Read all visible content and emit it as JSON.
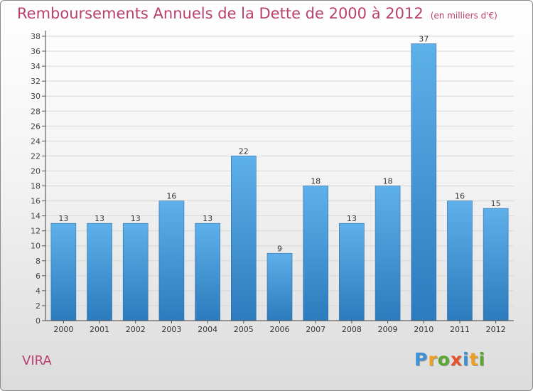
{
  "header": {
    "title": "Remboursements Annuels de la Dette de 2000 à 2012",
    "unit": "(en milliers d'€)"
  },
  "footer": {
    "commune": "VIRA",
    "logo_letters": [
      {
        "char": "P",
        "color": "#3d8fd6"
      },
      {
        "char": "r",
        "color": "#f0a020"
      },
      {
        "char": "o",
        "color": "#5aa832"
      },
      {
        "char": "x",
        "color": "#e8502a"
      },
      {
        "char": "i",
        "color": "#3d8fd6"
      },
      {
        "char": "t",
        "color": "#f0a020"
      },
      {
        "char": "i",
        "color": "#5aa832"
      }
    ]
  },
  "chart_data": {
    "type": "bar",
    "categories": [
      "2000",
      "2001",
      "2002",
      "2003",
      "2004",
      "2005",
      "2006",
      "2007",
      "2008",
      "2009",
      "2010",
      "2011",
      "2012"
    ],
    "values": [
      13,
      13,
      13,
      16,
      13,
      22,
      9,
      18,
      13,
      18,
      37,
      16,
      15
    ],
    "ylim": [
      0,
      38
    ],
    "yticks": [
      0,
      2,
      4,
      6,
      8,
      10,
      12,
      14,
      16,
      18,
      20,
      22,
      24,
      26,
      28,
      30,
      32,
      34,
      36,
      38
    ],
    "grid": true,
    "bar_color_top": "#5eb0ea",
    "bar_color_bottom": "#2c7bbd"
  }
}
